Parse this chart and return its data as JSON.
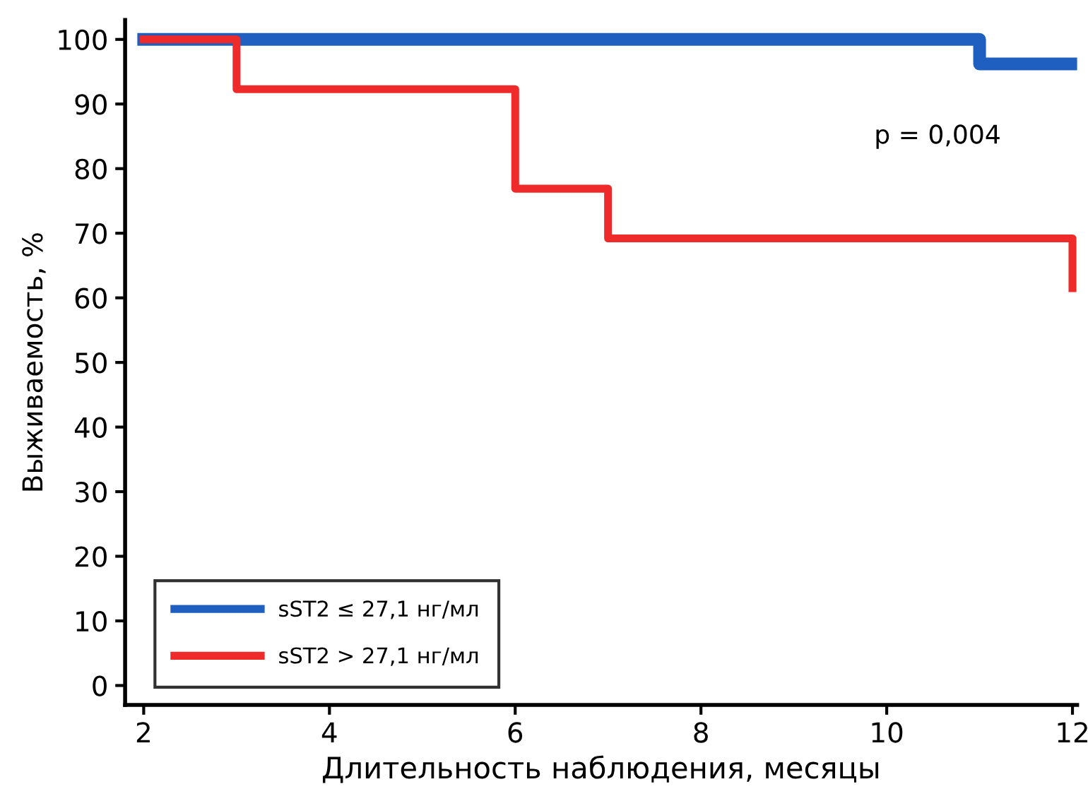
{
  "chart_data": {
    "type": "step",
    "xlabel": "Длительность наблюдения, месяцы",
    "ylabel": "Выживаемость, %",
    "xlim": [
      1.8,
      12.05
    ],
    "ylim": [
      -3,
      103
    ],
    "xticks": [
      2,
      4,
      6,
      8,
      10,
      12
    ],
    "yticks": [
      0,
      10,
      20,
      30,
      40,
      50,
      60,
      70,
      80,
      90,
      100
    ],
    "series": [
      {
        "name": "sST2 ≤ 27,1 нг/мл",
        "color": "#1f5fbf",
        "x": [
          2,
          11,
          12
        ],
        "values": [
          100,
          96.2,
          96.2
        ]
      },
      {
        "name": "sST2 > 27,1 нг/мл",
        "color": "#ee2a2a",
        "x": [
          2,
          3,
          6,
          7,
          12,
          12
        ],
        "values": [
          100,
          92.3,
          76.9,
          69.2,
          69.2,
          61.5
        ]
      }
    ],
    "annotations": [
      "p = 0,004"
    ],
    "legend": "bottom left",
    "grid": false,
    "line_style": "solid",
    "marker": "none"
  }
}
